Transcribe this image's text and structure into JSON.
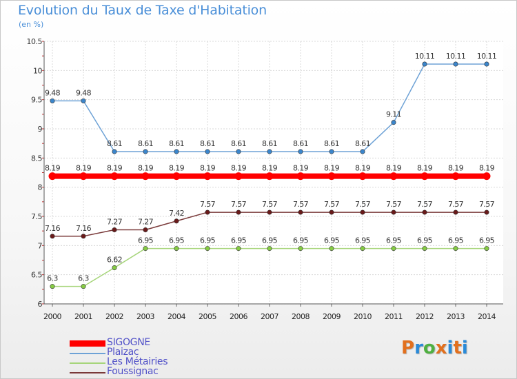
{
  "chart_data": {
    "type": "line",
    "title": "Evolution du Taux de Taxe d'Habitation",
    "ylabel": "(en %)",
    "xlabel": "",
    "x": [
      "2000",
      "2001",
      "2002",
      "2003",
      "2004",
      "2005",
      "2006",
      "2007",
      "2008",
      "2009",
      "2010",
      "2011",
      "2012",
      "2013",
      "2014"
    ],
    "yticks": [
      "6",
      "6.5",
      "7",
      "7.5",
      "8",
      "8.5",
      "9",
      "9.5",
      "10",
      "10.5"
    ],
    "ylim": [
      6,
      10.5
    ],
    "grid": true,
    "series": [
      {
        "name": "SIGOGNE",
        "color": "#ff0000",
        "marker": "#ff0000",
        "width": 8,
        "values": [
          8.19,
          8.19,
          8.19,
          8.19,
          8.19,
          8.19,
          8.19,
          8.19,
          8.19,
          8.19,
          8.19,
          8.19,
          8.19,
          8.19,
          8.19
        ],
        "labels": [
          "8.19",
          "8.19",
          "8.19",
          "8.19",
          "8.19",
          "8.19",
          "8.19",
          "8.19",
          "8.19",
          "8.19",
          "8.19",
          "8.19",
          "8.19",
          "8.19",
          "8.19"
        ]
      },
      {
        "name": "Plaizac",
        "color": "#6ea2d6",
        "marker": "#3b86cc",
        "width": 1.5,
        "values": [
          9.48,
          9.48,
          8.61,
          8.61,
          8.61,
          8.61,
          8.61,
          8.61,
          8.61,
          8.61,
          8.61,
          9.11,
          10.11,
          10.11,
          10.11
        ],
        "labels": [
          "9.48",
          "9.48",
          "8.61",
          "8.61",
          "8.61",
          "8.61",
          "8.61",
          "8.61",
          "8.61",
          "8.61",
          "8.61",
          "9.11",
          "10.11",
          "10.11",
          "10.11"
        ]
      },
      {
        "name": "Les Métairies",
        "color": "#a6d57a",
        "marker": "#86cc44",
        "width": 1.5,
        "values": [
          6.3,
          6.3,
          6.62,
          6.95,
          6.95,
          6.95,
          6.95,
          6.95,
          6.95,
          6.95,
          6.95,
          6.95,
          6.95,
          6.95,
          6.95
        ],
        "labels": [
          "6.3",
          "6.3",
          "6.62",
          "6.95",
          "6.95",
          "6.95",
          "6.95",
          "6.95",
          "6.95",
          "6.95",
          "6.95",
          "6.95",
          "6.95",
          "6.95",
          "6.95"
        ]
      },
      {
        "name": "Foussignac",
        "color": "#7a3a3a",
        "marker": "#6a1a1a",
        "width": 1.5,
        "values": [
          7.16,
          7.16,
          7.27,
          7.27,
          7.42,
          7.57,
          7.57,
          7.57,
          7.57,
          7.57,
          7.57,
          7.57,
          7.57,
          7.57,
          7.57
        ],
        "labels": [
          "7.16",
          "7.16",
          "7.27",
          "7.27",
          "7.42",
          "7.57",
          "7.57",
          "7.57",
          "7.57",
          "7.57",
          "7.57",
          "7.57",
          "7.57",
          "7.57",
          "7.57"
        ]
      }
    ]
  },
  "branding": {
    "logo_text": "Proxiti",
    "logo_colors": [
      "#e2701e",
      "#2a8ad8",
      "#4fb041",
      "#e2701e",
      "#2a8ad8",
      "#e2701e",
      "#2a8ad8"
    ]
  }
}
